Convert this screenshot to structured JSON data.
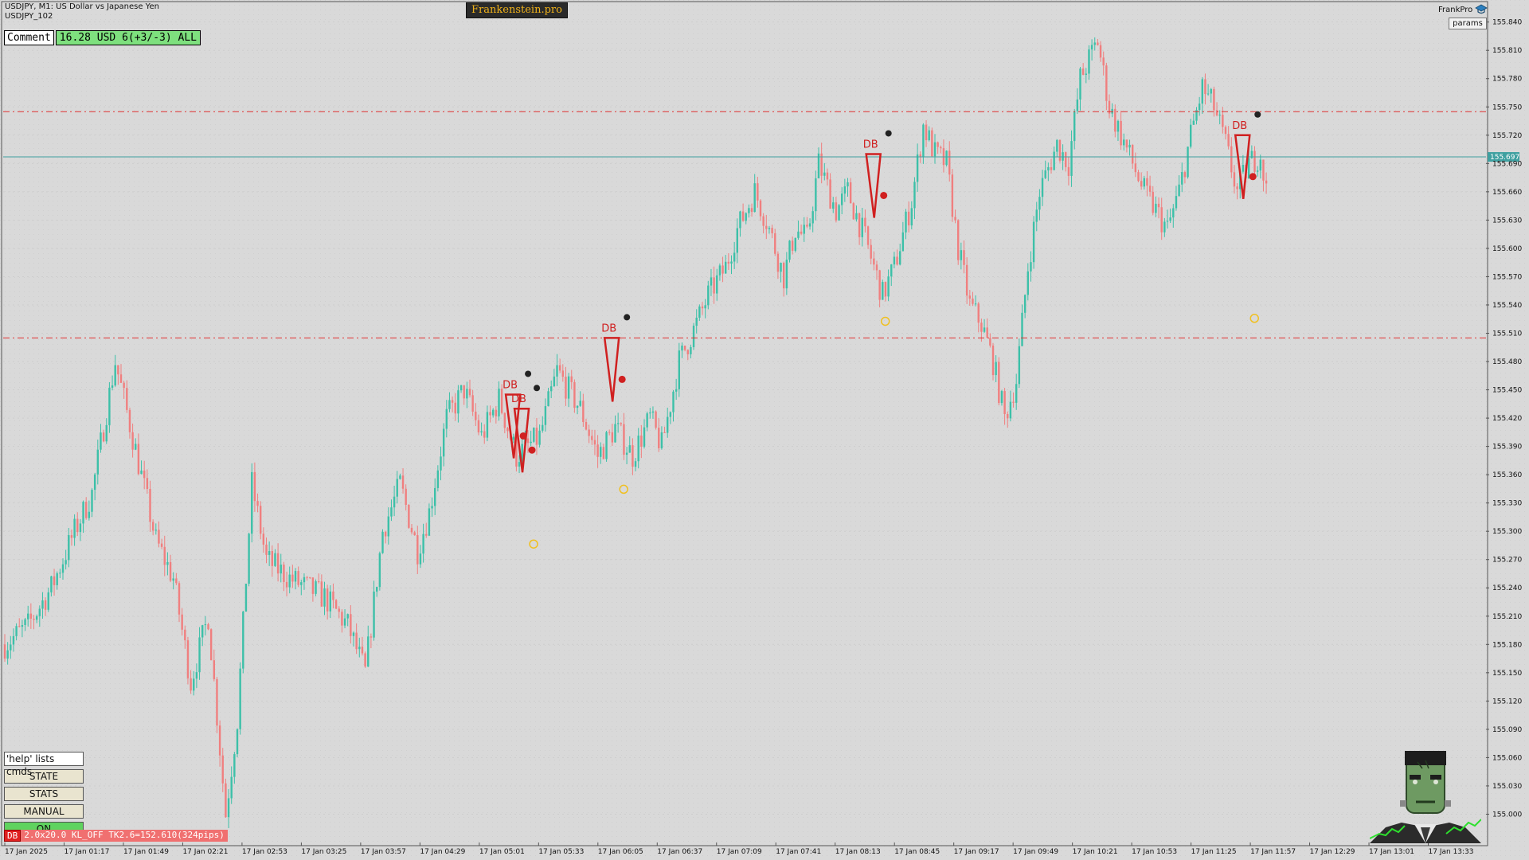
{
  "header": {
    "title": "USDJPY, M1:  US Dollar vs Japanese Yen",
    "account": "USDJPY_102",
    "brand": "Frankenstein.pro",
    "comment_label": "Comment",
    "comment_value": "16.28 USD 6(+3/-3) ALL",
    "profile": "FrankPro",
    "params": "params"
  },
  "commands": {
    "help": "'help' lists cmds",
    "state": "STATE",
    "stats": "STATS",
    "manual": "MANUAL",
    "on": "ON"
  },
  "strategy": {
    "tag": "DB",
    "text": "2.0x20.0 KL_OFF TK2.6=152.610(324pips)"
  },
  "colors": {
    "background": "#d9d9d9",
    "bull": "#3cc0a8",
    "bear": "#f07f7f",
    "level": "#e03030",
    "bid_line": "#3fa0a0",
    "marker": "#d02020",
    "coin": "#f0c020"
  },
  "chart_data": {
    "type": "candlestick",
    "symbol": "USDJPY",
    "timeframe": "M1",
    "current_price": "155.697",
    "ylim": [
      154.97,
      155.86
    ],
    "y_ticks": [
      "155.840",
      "155.810",
      "155.780",
      "155.750",
      "155.720",
      "155.690",
      "155.660",
      "155.630",
      "155.600",
      "155.570",
      "155.540",
      "155.510",
      "155.480",
      "155.450",
      "155.420",
      "155.390",
      "155.360",
      "155.330",
      "155.300",
      "155.270",
      "155.240",
      "155.210",
      "155.180",
      "155.150",
      "155.120",
      "155.090",
      "155.060",
      "155.030",
      "155.000"
    ],
    "x_ticks": [
      "17 Jan 2025",
      "17 Jan 01:17",
      "17 Jan 01:49",
      "17 Jan 02:21",
      "17 Jan 02:53",
      "17 Jan 03:25",
      "17 Jan 03:57",
      "17 Jan 04:29",
      "17 Jan 05:01",
      "17 Jan 05:33",
      "17 Jan 06:05",
      "17 Jan 06:37",
      "17 Jan 07:09",
      "17 Jan 07:41",
      "17 Jan 08:13",
      "17 Jan 08:45",
      "17 Jan 09:17",
      "17 Jan 09:49",
      "17 Jan 10:21",
      "17 Jan 10:53",
      "17 Jan 11:25",
      "17 Jan 11:57",
      "17 Jan 12:29",
      "17 Jan 13:01",
      "17 Jan 13:33"
    ],
    "levels": [
      155.745,
      155.505
    ],
    "price_path": [
      [
        0,
        155.18
      ],
      [
        8,
        155.2
      ],
      [
        16,
        155.24
      ],
      [
        24,
        155.3
      ],
      [
        30,
        155.34
      ],
      [
        38,
        155.48
      ],
      [
        44,
        155.4
      ],
      [
        52,
        155.29
      ],
      [
        58,
        155.25
      ],
      [
        64,
        155.14
      ],
      [
        70,
        155.21
      ],
      [
        76,
        155.0
      ],
      [
        80,
        155.1
      ],
      [
        85,
        155.35
      ],
      [
        90,
        155.27
      ],
      [
        98,
        155.25
      ],
      [
        110,
        155.23
      ],
      [
        118,
        155.2
      ],
      [
        124,
        155.15
      ],
      [
        130,
        155.3
      ],
      [
        136,
        155.35
      ],
      [
        142,
        155.28
      ],
      [
        146,
        155.32
      ],
      [
        152,
        155.42
      ],
      [
        158,
        155.45
      ],
      [
        164,
        155.4
      ],
      [
        170,
        155.44
      ],
      [
        176,
        155.38
      ],
      [
        184,
        155.4
      ],
      [
        190,
        155.47
      ],
      [
        198,
        155.43
      ],
      [
        204,
        155.38
      ],
      [
        210,
        155.41
      ],
      [
        216,
        155.38
      ],
      [
        222,
        155.42
      ],
      [
        226,
        155.39
      ],
      [
        232,
        155.48
      ],
      [
        238,
        155.52
      ],
      [
        242,
        155.55
      ],
      [
        248,
        155.58
      ],
      [
        252,
        155.62
      ],
      [
        258,
        155.66
      ],
      [
        262,
        155.63
      ],
      [
        268,
        155.57
      ],
      [
        272,
        155.62
      ],
      [
        276,
        155.61
      ],
      [
        280,
        155.69
      ],
      [
        286,
        155.64
      ],
      [
        290,
        155.66
      ],
      [
        296,
        155.61
      ],
      [
        302,
        155.55
      ],
      [
        306,
        155.58
      ],
      [
        312,
        155.65
      ],
      [
        316,
        155.73
      ],
      [
        320,
        155.7
      ],
      [
        324,
        155.69
      ],
      [
        328,
        155.6
      ],
      [
        332,
        155.54
      ],
      [
        336,
        155.52
      ],
      [
        340,
        155.48
      ],
      [
        344,
        155.42
      ],
      [
        348,
        155.46
      ],
      [
        352,
        155.58
      ],
      [
        356,
        155.66
      ],
      [
        362,
        155.71
      ],
      [
        366,
        155.69
      ],
      [
        370,
        155.78
      ],
      [
        376,
        155.82
      ],
      [
        380,
        155.75
      ],
      [
        384,
        155.72
      ],
      [
        388,
        155.69
      ],
      [
        392,
        155.66
      ],
      [
        396,
        155.64
      ],
      [
        400,
        155.62
      ],
      [
        404,
        155.66
      ],
      [
        408,
        155.72
      ],
      [
        412,
        155.77
      ],
      [
        416,
        155.75
      ],
      [
        420,
        155.71
      ],
      [
        424,
        155.66
      ],
      [
        428,
        155.69
      ],
      [
        432,
        155.7
      ],
      [
        434,
        155.66
      ]
    ],
    "markers": [
      {
        "label": "DB",
        "time_index": 174,
        "price": 155.445
      },
      {
        "label": "DB",
        "time_index": 177,
        "price": 155.43
      },
      {
        "label": "DB",
        "time_index": 208,
        "price": 155.505
      },
      {
        "label": "DB",
        "time_index": 298,
        "price": 155.7
      },
      {
        "label": "DB",
        "time_index": 425,
        "price": 155.72
      }
    ]
  }
}
